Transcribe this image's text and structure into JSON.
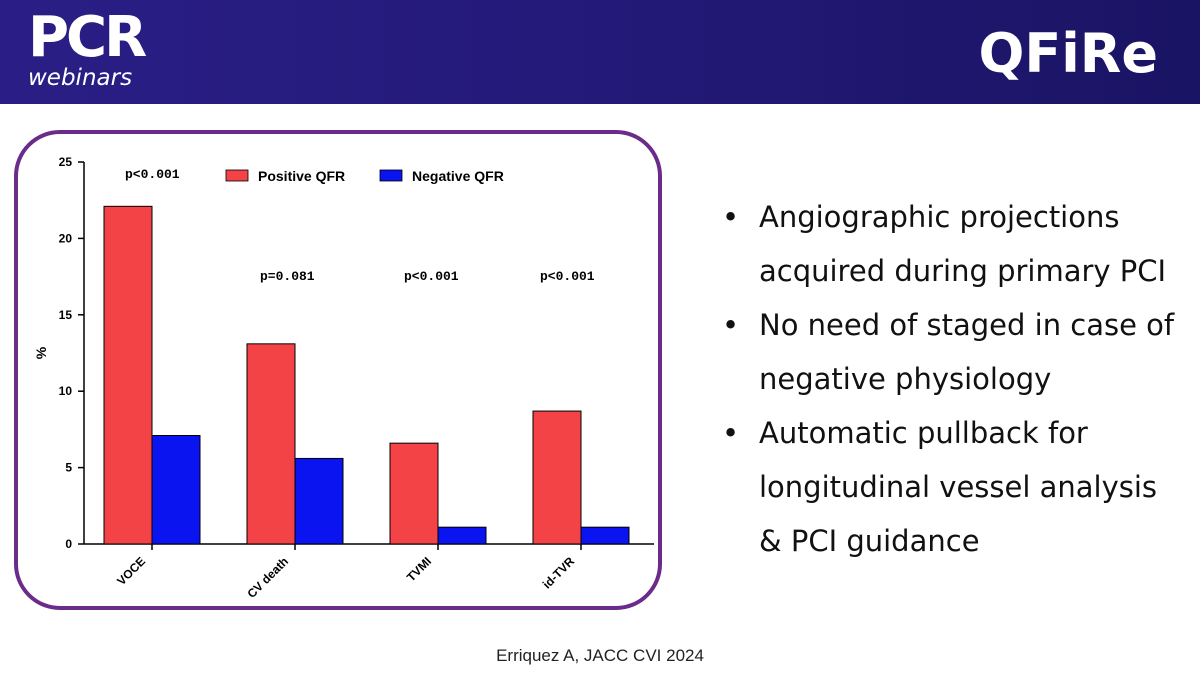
{
  "header": {
    "logo_main": "PCR",
    "logo_sub": "webinars",
    "title": "QFiRe"
  },
  "bullets": [
    "Angiographic projections acquired during primary PCI",
    "No need of staged in case of negative physiology",
    "Automatic pullback for longitudinal vessel analysis & PCI guidance"
  ],
  "citation": "Erriquez A, JACC CVI 2024",
  "colors": {
    "header_bg": "#251b7c",
    "frame": "#6a2b8a",
    "positive": "#f44346",
    "negative": "#0a14f0"
  },
  "chart_data": {
    "type": "bar",
    "title": "",
    "xlabel": "",
    "ylabel": "%",
    "ylim": [
      0,
      25
    ],
    "yticks": [
      0,
      5,
      10,
      15,
      20,
      25
    ],
    "categories": [
      "VOCE",
      "CV death",
      "TVMI",
      "id-TVR"
    ],
    "series": [
      {
        "name": "Positive QFR",
        "color": "#f44346",
        "values": [
          22.1,
          13.1,
          6.6,
          8.7
        ]
      },
      {
        "name": "Negative QFR",
        "color": "#0a14f0",
        "values": [
          7.1,
          5.6,
          1.1,
          1.1
        ]
      }
    ],
    "annotations": [
      "p<0.001",
      "p=0.081",
      "p<0.001",
      "p<0.001"
    ],
    "legend_position": "top"
  }
}
